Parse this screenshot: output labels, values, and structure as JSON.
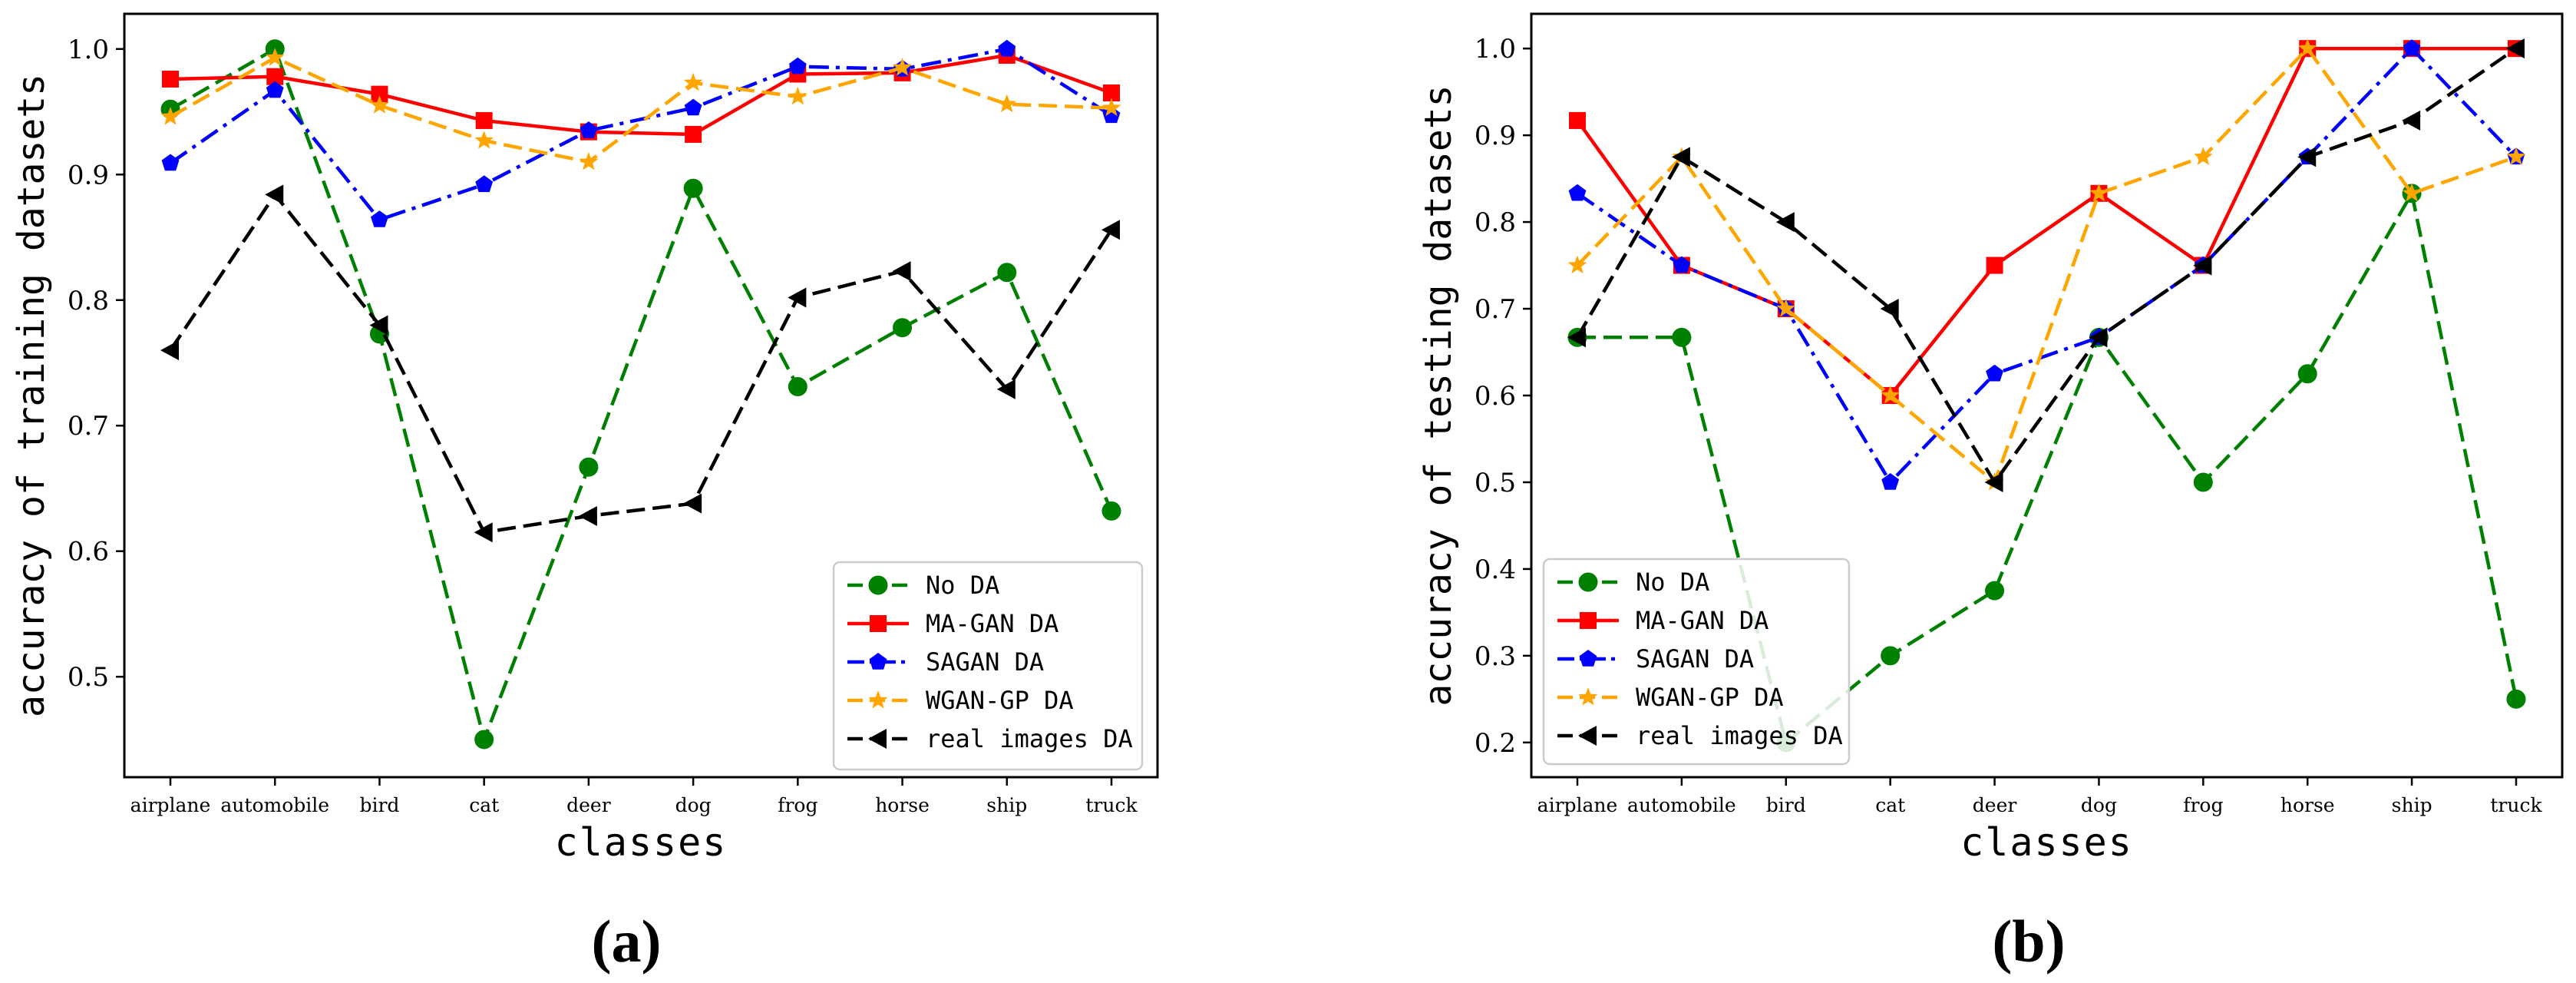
{
  "chart_data": [
    {
      "type": "line",
      "panel_label": "(a)",
      "title": "",
      "xlabel": "classes",
      "ylabel": "accuracy of training datasets",
      "categories": [
        "airplane",
        "automobile",
        "bird",
        "cat",
        "deer",
        "dog",
        "frog",
        "horse",
        "ship",
        "truck"
      ],
      "ylim": [
        0.42,
        1.028
      ],
      "yticks": [
        0.5,
        0.6,
        0.7,
        0.8,
        0.9,
        1.0
      ],
      "ytick_labels": [
        "0.5",
        "0.6",
        "0.7",
        "0.8",
        "0.9",
        "1.0"
      ],
      "grid": false,
      "legend_position": "lower-right",
      "series": [
        {
          "name": "No DA",
          "color": "#008000",
          "line_style": "dashed",
          "marker": "circle",
          "values": [
            0.952,
            1.0,
            0.773,
            0.45,
            0.667,
            0.889,
            0.731,
            0.778,
            0.822,
            0.632
          ]
        },
        {
          "name": "MA-GAN DA",
          "color": "#ff0000",
          "line_style": "solid",
          "marker": "square",
          "values": [
            0.976,
            0.978,
            0.964,
            0.943,
            0.934,
            0.932,
            0.98,
            0.981,
            0.995,
            0.965
          ]
        },
        {
          "name": "SAGAN DA",
          "color": "#0000ff",
          "line_style": "dashdot",
          "marker": "pentagon",
          "values": [
            0.909,
            0.967,
            0.864,
            0.892,
            0.935,
            0.953,
            0.986,
            0.984,
            1.0,
            0.947
          ]
        },
        {
          "name": "WGAN-GP DA",
          "color": "#ffa500",
          "line_style": "dashed",
          "marker": "star",
          "values": [
            0.946,
            0.993,
            0.955,
            0.927,
            0.91,
            0.973,
            0.962,
            0.985,
            0.956,
            0.953
          ]
        },
        {
          "name": "real images DA",
          "color": "#000000",
          "line_style": "dashed",
          "marker": "triangle-left",
          "values": [
            0.76,
            0.884,
            0.78,
            0.615,
            0.628,
            0.638,
            0.802,
            0.823,
            0.729,
            0.856
          ]
        }
      ]
    },
    {
      "type": "line",
      "panel_label": "(b)",
      "title": "",
      "xlabel": "classes",
      "ylabel": "accuracy of testing datasets",
      "categories": [
        "airplane",
        "automobile",
        "bird",
        "cat",
        "deer",
        "dog",
        "frog",
        "horse",
        "ship",
        "truck"
      ],
      "ylim": [
        0.16,
        1.04
      ],
      "yticks": [
        0.2,
        0.3,
        0.4,
        0.5,
        0.6,
        0.7,
        0.8,
        0.9,
        1.0
      ],
      "ytick_labels": [
        "0.2",
        "0.3",
        "0.4",
        "0.5",
        "0.6",
        "0.7",
        "0.8",
        "0.9",
        "1.0"
      ],
      "grid": false,
      "legend_position": "lower-left",
      "series": [
        {
          "name": "No DA",
          "color": "#008000",
          "line_style": "dashed",
          "marker": "circle",
          "values": [
            0.667,
            0.667,
            0.2,
            0.3,
            0.375,
            0.667,
            0.5,
            0.625,
            0.833,
            0.25
          ]
        },
        {
          "name": "MA-GAN DA",
          "color": "#ff0000",
          "line_style": "solid",
          "marker": "square",
          "values": [
            0.917,
            0.75,
            0.7,
            0.6,
            0.75,
            0.833,
            0.75,
            1.0,
            1.0,
            1.0
          ]
        },
        {
          "name": "SAGAN DA",
          "color": "#0000ff",
          "line_style": "dashdot",
          "marker": "pentagon",
          "values": [
            0.833,
            0.75,
            0.7,
            0.5,
            0.625,
            0.667,
            0.75,
            0.875,
            1.0,
            0.875
          ]
        },
        {
          "name": "WGAN-GP DA",
          "color": "#ffa500",
          "line_style": "dashed",
          "marker": "star",
          "values": [
            0.75,
            0.875,
            0.7,
            0.6,
            0.5,
            0.833,
            0.875,
            1.0,
            0.833,
            0.875
          ]
        },
        {
          "name": "real images DA",
          "color": "#000000",
          "line_style": "dashed",
          "marker": "triangle-left",
          "values": [
            0.667,
            0.875,
            0.8,
            0.7,
            0.5,
            0.667,
            0.75,
            0.875,
            0.917,
            1.0
          ]
        }
      ]
    }
  ]
}
